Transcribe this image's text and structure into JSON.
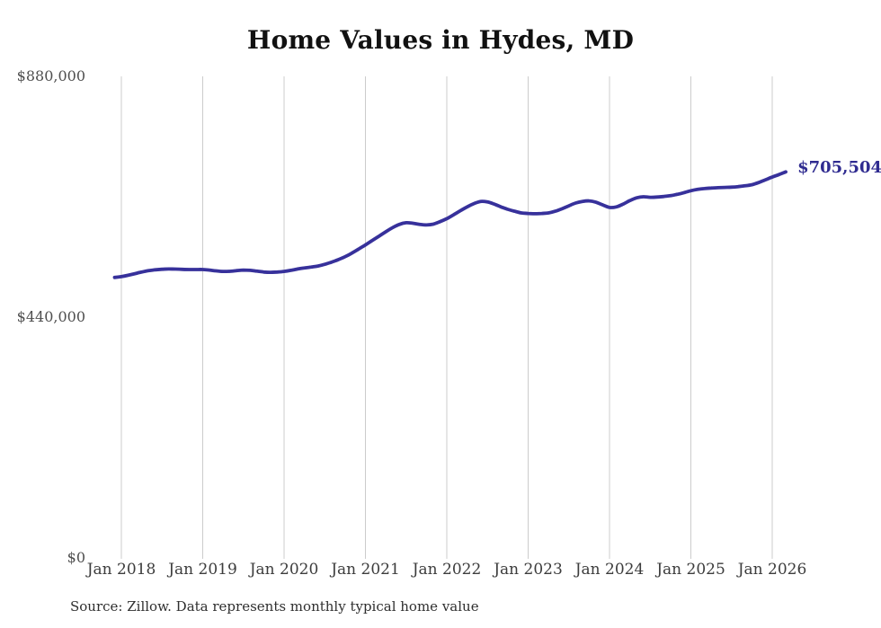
{
  "source": "Source: Zillow. Data represents monthly typical home value",
  "chart_data": {
    "type": "line",
    "title": "Home Values in Hydes, MD",
    "end_label": "$705,504",
    "latest_value": 705504,
    "line_color": "#37319b",
    "end_label_color": "#2f2b90",
    "grid_color": "#cccccc",
    "ylim": [
      0,
      880000
    ],
    "y_ticks": [
      {
        "value": 0,
        "label": "$0"
      },
      {
        "value": 440000,
        "label": "$440,000"
      },
      {
        "value": 880000,
        "label": "$880,000"
      }
    ],
    "x_ticks": [
      {
        "date": "2018-01",
        "label": "Jan 2018"
      },
      {
        "date": "2019-01",
        "label": "Jan 2019"
      },
      {
        "date": "2020-01",
        "label": "Jan 2020"
      },
      {
        "date": "2021-01",
        "label": "Jan 2021"
      },
      {
        "date": "2022-01",
        "label": "Jan 2022"
      },
      {
        "date": "2023-01",
        "label": "Jan 2023"
      },
      {
        "date": "2024-01",
        "label": "Jan 2024"
      },
      {
        "date": "2025-01",
        "label": "Jan 2025"
      },
      {
        "date": "2026-01",
        "label": "Jan 2026"
      }
    ],
    "x": [
      "2017-12",
      "2018-01",
      "2018-02",
      "2018-03",
      "2018-04",
      "2018-05",
      "2018-06",
      "2018-07",
      "2018-08",
      "2018-09",
      "2018-10",
      "2018-11",
      "2018-12",
      "2019-01",
      "2019-02",
      "2019-03",
      "2019-04",
      "2019-05",
      "2019-06",
      "2019-07",
      "2019-08",
      "2019-09",
      "2019-10",
      "2019-11",
      "2019-12",
      "2020-01",
      "2020-02",
      "2020-03",
      "2020-04",
      "2020-05",
      "2020-06",
      "2020-07",
      "2020-08",
      "2020-09",
      "2020-10",
      "2020-11",
      "2020-12",
      "2021-01",
      "2021-02",
      "2021-03",
      "2021-04",
      "2021-05",
      "2021-06",
      "2021-07",
      "2021-08",
      "2021-09",
      "2021-10",
      "2021-11",
      "2021-12",
      "2022-01",
      "2022-02",
      "2022-03",
      "2022-04",
      "2022-05",
      "2022-06",
      "2022-07",
      "2022-08",
      "2022-09",
      "2022-10",
      "2022-11",
      "2022-12",
      "2023-01",
      "2023-02",
      "2023-03",
      "2023-04",
      "2023-05",
      "2023-06",
      "2023-07",
      "2023-08",
      "2023-09",
      "2023-10",
      "2023-11",
      "2023-12",
      "2024-01",
      "2024-02",
      "2024-03",
      "2024-04",
      "2024-05",
      "2024-06",
      "2024-07",
      "2024-08",
      "2024-09",
      "2024-10",
      "2024-11",
      "2024-12",
      "2025-01",
      "2025-02",
      "2025-03",
      "2025-04",
      "2025-05",
      "2025-06",
      "2025-07",
      "2025-08",
      "2025-09",
      "2025-10",
      "2025-11",
      "2025-12",
      "2026-01",
      "2026-02",
      "2026-03"
    ],
    "values": [
      512500,
      514000,
      516500,
      519500,
      522500,
      525000,
      526500,
      527500,
      528000,
      527800,
      527300,
      527000,
      527000,
      527000,
      526000,
      524500,
      523500,
      523800,
      525000,
      526000,
      525500,
      524000,
      522500,
      522000,
      522500,
      523500,
      525500,
      528000,
      530000,
      531500,
      533500,
      536500,
      540500,
      545000,
      550500,
      557000,
      564500,
      572000,
      580000,
      588000,
      596000,
      603500,
      609500,
      612500,
      611500,
      609500,
      608500,
      610000,
      614500,
      620000,
      627000,
      634500,
      641500,
      647500,
      651500,
      650500,
      646500,
      641500,
      637000,
      633500,
      630500,
      629500,
      629000,
      629500,
      630500,
      633500,
      638000,
      643500,
      648500,
      651500,
      652500,
      650000,
      645000,
      640500,
      641500,
      646500,
      653000,
      658000,
      660000,
      659000,
      659500,
      660500,
      662000,
      664500,
      667500,
      671000,
      673500,
      675000,
      676000,
      676500,
      677000,
      677500,
      678500,
      680000,
      682000,
      686000,
      691000,
      696000,
      700500,
      705504
    ]
  }
}
